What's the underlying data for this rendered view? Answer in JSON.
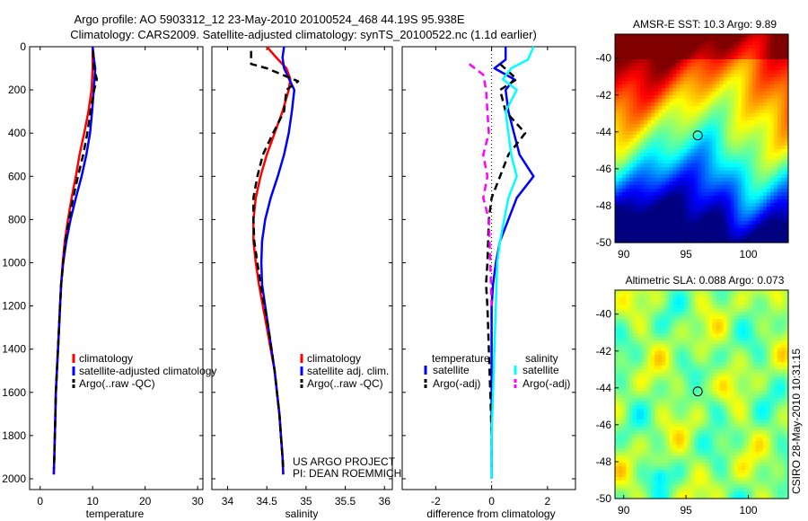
{
  "header": {
    "title_line1": "Argo profile: AO 5903312_12 23-May-2010 20100524_468 44.19S 95.938E",
    "title_line2": "Climatology: CARS2009. Satellite-adjusted climatology: synTS_20100522.nc (1.1d earlier)"
  },
  "side_stamp": "CSIRO 28-May-2010 10:31:15",
  "credit": {
    "line1": "US ARGO PROJECT",
    "line2": "PI: DEAN ROEMMICH"
  },
  "colors": {
    "red": "#ff0000",
    "blue": "#0000ff",
    "black": "#000000",
    "cyan": "#00ffff",
    "magenta": "#ff00ff"
  },
  "chart_data": [
    {
      "type": "line",
      "xlabel": "temperature",
      "xlim": [
        -2,
        31
      ],
      "ylim": [
        2050,
        0
      ],
      "x_ticks": [
        0,
        10,
        20,
        30
      ],
      "y_ticks": [
        0,
        200,
        400,
        600,
        800,
        1000,
        1200,
        1400,
        1600,
        1800,
        2000
      ],
      "legend": {
        "position": "lower-right",
        "labels": [
          "climatology",
          "satellite-adjusted climatology",
          "Argo(..raw -QC)"
        ]
      },
      "series": [
        {
          "name": "climatology",
          "color": "red",
          "style": "solid",
          "points": [
            [
              10.0,
              0
            ],
            [
              10.0,
              50
            ],
            [
              10.0,
              100
            ],
            [
              9.8,
              200
            ],
            [
              9.2,
              300
            ],
            [
              8.4,
              400
            ],
            [
              7.5,
              500
            ],
            [
              6.8,
              600
            ],
            [
              6.0,
              700
            ],
            [
              5.3,
              800
            ],
            [
              4.7,
              900
            ],
            [
              4.3,
              1000
            ],
            [
              4.0,
              1100
            ],
            [
              3.8,
              1200
            ],
            [
              3.6,
              1300
            ],
            [
              3.4,
              1400
            ],
            [
              3.2,
              1500
            ],
            [
              3.0,
              1600
            ],
            [
              2.9,
              1700
            ],
            [
              2.8,
              1800
            ],
            [
              2.7,
              1900
            ],
            [
              2.6,
              1980
            ]
          ]
        },
        {
          "name": "satellite-adjusted climatology",
          "color": "blue",
          "style": "solid",
          "points": [
            [
              10.0,
              0
            ],
            [
              10.2,
              50
            ],
            [
              10.5,
              100
            ],
            [
              10.2,
              200
            ],
            [
              9.9,
              300
            ],
            [
              9.5,
              400
            ],
            [
              8.8,
              500
            ],
            [
              7.9,
              600
            ],
            [
              6.8,
              700
            ],
            [
              5.8,
              800
            ],
            [
              5.0,
              900
            ],
            [
              4.4,
              1000
            ],
            [
              4.0,
              1100
            ],
            [
              3.8,
              1200
            ],
            [
              3.6,
              1300
            ],
            [
              3.4,
              1400
            ],
            [
              3.2,
              1500
            ],
            [
              3.0,
              1600
            ],
            [
              2.9,
              1700
            ],
            [
              2.8,
              1800
            ],
            [
              2.7,
              1900
            ],
            [
              2.6,
              1980
            ]
          ]
        },
        {
          "name": "Argo(..raw -QC)",
          "color": "black",
          "style": "dashed",
          "points": [
            [
              10.1,
              20
            ],
            [
              10.2,
              100
            ],
            [
              10.8,
              150
            ],
            [
              10.3,
              200
            ],
            [
              9.6,
              300
            ],
            [
              9.0,
              400
            ],
            [
              8.2,
              500
            ],
            [
              7.2,
              600
            ],
            [
              6.3,
              700
            ],
            [
              5.5,
              800
            ],
            [
              4.8,
              900
            ],
            [
              4.4,
              1000
            ],
            [
              4.0,
              1100
            ],
            [
              3.8,
              1200
            ],
            [
              3.6,
              1300
            ],
            [
              3.4,
              1400
            ],
            [
              3.2,
              1500
            ],
            [
              3.0,
              1600
            ],
            [
              2.9,
              1700
            ],
            [
              2.8,
              1800
            ],
            [
              2.7,
              1900
            ],
            [
              2.6,
              1950
            ]
          ]
        }
      ]
    },
    {
      "type": "line",
      "xlabel": "salinity",
      "xlim": [
        33.8,
        36.1
      ],
      "ylim": [
        2050,
        0
      ],
      "x_ticks": [
        34,
        34.5,
        35,
        35.5,
        36
      ],
      "legend": {
        "position": "lower-right",
        "labels": [
          "climatology",
          "satellite adj. clim.",
          "Argo(..raw -QC)"
        ]
      },
      "series": [
        {
          "name": "climatology",
          "color": "red",
          "style": "solid",
          "points": [
            [
              34.5,
              0
            ],
            [
              34.62,
              50
            ],
            [
              34.75,
              100
            ],
            [
              34.8,
              150
            ],
            [
              34.78,
              200
            ],
            [
              34.7,
              300
            ],
            [
              34.6,
              400
            ],
            [
              34.5,
              500
            ],
            [
              34.42,
              600
            ],
            [
              34.36,
              700
            ],
            [
              34.33,
              800
            ],
            [
              34.33,
              900
            ],
            [
              34.36,
              1000
            ],
            [
              34.4,
              1100
            ],
            [
              34.45,
              1200
            ],
            [
              34.5,
              1300
            ],
            [
              34.55,
              1400
            ],
            [
              34.6,
              1500
            ],
            [
              34.63,
              1600
            ],
            [
              34.66,
              1700
            ],
            [
              34.68,
              1800
            ],
            [
              34.7,
              1900
            ],
            [
              34.71,
              1980
            ]
          ]
        },
        {
          "name": "satellite adj. clim.",
          "color": "blue",
          "style": "solid",
          "points": [
            [
              34.72,
              0
            ],
            [
              34.7,
              50
            ],
            [
              34.72,
              100
            ],
            [
              34.85,
              200
            ],
            [
              34.82,
              300
            ],
            [
              34.78,
              400
            ],
            [
              34.72,
              500
            ],
            [
              34.64,
              600
            ],
            [
              34.55,
              700
            ],
            [
              34.48,
              800
            ],
            [
              34.44,
              900
            ],
            [
              34.43,
              1000
            ],
            [
              34.44,
              1100
            ],
            [
              34.48,
              1200
            ],
            [
              34.52,
              1300
            ],
            [
              34.56,
              1400
            ],
            [
              34.6,
              1500
            ],
            [
              34.63,
              1600
            ],
            [
              34.66,
              1700
            ],
            [
              34.68,
              1800
            ],
            [
              34.7,
              1900
            ],
            [
              34.71,
              1980
            ]
          ]
        },
        {
          "name": "Argo(..raw -QC)",
          "color": "black",
          "style": "dashed",
          "points": [
            [
              34.3,
              20
            ],
            [
              34.3,
              80
            ],
            [
              34.5,
              100
            ],
            [
              34.7,
              130
            ],
            [
              34.9,
              160
            ],
            [
              34.75,
              200
            ],
            [
              34.72,
              300
            ],
            [
              34.58,
              400
            ],
            [
              34.45,
              500
            ],
            [
              34.38,
              600
            ],
            [
              34.33,
              700
            ],
            [
              34.33,
              800
            ],
            [
              34.34,
              900
            ],
            [
              34.38,
              1000
            ],
            [
              34.42,
              1100
            ],
            [
              34.47,
              1200
            ],
            [
              34.52,
              1300
            ],
            [
              34.56,
              1400
            ],
            [
              34.6,
              1500
            ],
            [
              34.63,
              1600
            ],
            [
              34.66,
              1700
            ],
            [
              34.68,
              1800
            ],
            [
              34.7,
              1900
            ],
            [
              34.71,
              1950
            ]
          ]
        }
      ]
    },
    {
      "type": "line",
      "xlabel": "difference from climatology",
      "xlim": [
        -3.2,
        3.0
      ],
      "ylim": [
        2050,
        0
      ],
      "x_ticks": [
        -2,
        0,
        2
      ],
      "legend": {
        "position": "lower-center",
        "group1": "temperature",
        "group2": "salinity",
        "labels": [
          "satellite",
          "Argo(-adj)",
          "satellite",
          "Argo(-adj)"
        ]
      },
      "series": [
        {
          "name": "satellite",
          "group": "temperature",
          "color": "blue",
          "style": "solid",
          "points": [
            [
              0.5,
              0
            ],
            [
              0.5,
              60
            ],
            [
              0.1,
              100
            ],
            [
              0.8,
              150
            ],
            [
              0.5,
              200
            ],
            [
              0.6,
              300
            ],
            [
              0.8,
              400
            ],
            [
              1.0,
              500
            ],
            [
              1.5,
              600
            ],
            [
              0.9,
              700
            ],
            [
              0.6,
              800
            ],
            [
              0.3,
              900
            ],
            [
              0.15,
              1000
            ],
            [
              0.05,
              1100
            ],
            [
              0.0,
              1200
            ],
            [
              0.0,
              2000
            ]
          ]
        },
        {
          "name": "Argo(-adj)",
          "group": "temperature",
          "color": "black",
          "style": "dashed",
          "points": [
            [
              0.3,
              80
            ],
            [
              0.9,
              150
            ],
            [
              0.3,
              200
            ],
            [
              0.5,
              300
            ],
            [
              1.2,
              400
            ],
            [
              0.6,
              500
            ],
            [
              0.3,
              600
            ],
            [
              0.0,
              700
            ],
            [
              -0.1,
              800
            ],
            [
              -0.15,
              1000
            ],
            [
              -0.2,
              1100
            ],
            [
              -0.15,
              1200
            ],
            [
              -0.1,
              1400
            ],
            [
              -0.05,
              1600
            ],
            [
              0.0,
              1800
            ],
            [
              0.0,
              1950
            ]
          ]
        },
        {
          "name": "satellite",
          "group": "salinity",
          "color": "cyan",
          "style": "solid",
          "points": [
            [
              1.5,
              0
            ],
            [
              1.3,
              60
            ],
            [
              0.7,
              100
            ],
            [
              0.4,
              150
            ],
            [
              0.9,
              200
            ],
            [
              0.5,
              300
            ],
            [
              0.6,
              400
            ],
            [
              0.7,
              500
            ],
            [
              0.9,
              600
            ],
            [
              0.6,
              700
            ],
            [
              0.45,
              800
            ],
            [
              0.3,
              900
            ],
            [
              0.2,
              1000
            ],
            [
              0.15,
              1200
            ],
            [
              0.1,
              1400
            ],
            [
              0.05,
              1600
            ],
            [
              0.0,
              1800
            ],
            [
              0.0,
              2000
            ]
          ]
        },
        {
          "name": "Argo(-adj)",
          "group": "salinity",
          "color": "magenta",
          "style": "dashed",
          "points": [
            [
              -0.8,
              80
            ],
            [
              -0.6,
              100
            ],
            [
              -0.3,
              130
            ],
            [
              -0.2,
              200
            ],
            [
              -0.15,
              300
            ],
            [
              -0.1,
              400
            ],
            [
              -0.3,
              500
            ],
            [
              -0.15,
              600
            ],
            [
              -0.3,
              700
            ],
            [
              -0.1,
              800
            ],
            [
              -0.05,
              1000
            ],
            [
              0.0,
              1200
            ]
          ]
        }
      ]
    },
    {
      "type": "heatmap",
      "title": "AMSR-E SST: 10.3 Argo: 9.89",
      "xlim": [
        89.3,
        103.2
      ],
      "ylim": [
        -50,
        -38.7
      ],
      "x_ticks": [
        90,
        95,
        100
      ],
      "y_ticks": [
        -40,
        -42,
        -44,
        -46,
        -48,
        -50
      ],
      "marker": {
        "lon": 95.938,
        "lat": -44.19
      }
    },
    {
      "type": "heatmap",
      "title": "Altimetric SLA: 0.088 Argo: 0.073",
      "xlim": [
        89.3,
        103.2
      ],
      "ylim": [
        -50,
        -38.7
      ],
      "x_ticks": [
        90,
        95,
        100
      ],
      "y_ticks": [
        -40,
        -42,
        -44,
        -46,
        -48,
        -50
      ],
      "marker": {
        "lon": 95.938,
        "lat": -44.19
      }
    }
  ]
}
